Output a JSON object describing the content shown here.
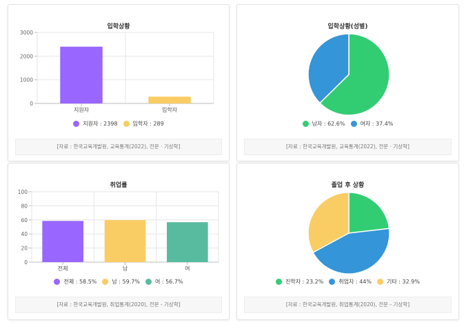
{
  "colors": {
    "purple": "#9966ff",
    "yellow": "#f9cd64",
    "teal": "#58bb9f",
    "green": "#32cd73",
    "blue": "#3595d9"
  },
  "chart_data": [
    {
      "type": "bar",
      "title": "입학상황",
      "categories": [
        "지원자",
        "입학자"
      ],
      "values": [
        2398,
        289
      ],
      "colors": [
        "#9966ff",
        "#f9cd64"
      ],
      "ylim": [
        0,
        3000
      ],
      "yticks": [
        0,
        1000,
        2000,
        3000
      ],
      "grid": true,
      "legend": [
        "지원자 : 2398",
        "입학자 : 289"
      ],
      "source": "[자료 : 한국교육개발원, 교육통계(2022), 전문 · 기상학]"
    },
    {
      "type": "pie",
      "title": "입학상황(성별)",
      "categories": [
        "남자",
        "여자"
      ],
      "values": [
        62.6,
        37.4
      ],
      "colors": [
        "#32cd73",
        "#3595d9"
      ],
      "legend": [
        "남자 : 62.6%",
        "여자 : 37.4%"
      ],
      "source": "[자료 : 한국교육개발원, 교육통계(2022), 전문 · 기상학]"
    },
    {
      "type": "bar",
      "title": "취업률",
      "categories": [
        "전체",
        "남",
        "여"
      ],
      "values": [
        58.5,
        59.7,
        56.7
      ],
      "colors": [
        "#9966ff",
        "#f9cd64",
        "#58bb9f"
      ],
      "ylim": [
        0,
        100
      ],
      "yticks": [
        0,
        20,
        40,
        60,
        80,
        100
      ],
      "grid": true,
      "legend": [
        "전체 : 58.5%",
        "남 : 59.7%",
        "여 : 56.7%"
      ],
      "source": "[자료 : 한국교육개발원, 취업통계(2020), 전문 - 기상학]"
    },
    {
      "type": "pie",
      "title": "졸업 후 상황",
      "categories": [
        "진학자",
        "취업자",
        "기타"
      ],
      "values": [
        23.2,
        44,
        32.9
      ],
      "colors": [
        "#32cd73",
        "#3595d9",
        "#f9cd64"
      ],
      "legend": [
        "진학자 : 23.2%",
        "취업자 : 44%",
        "기타 : 32.9%"
      ],
      "source": "[자료 : 한국교육개발원, 취업통계(2020), 전문 - 기상학]"
    }
  ]
}
